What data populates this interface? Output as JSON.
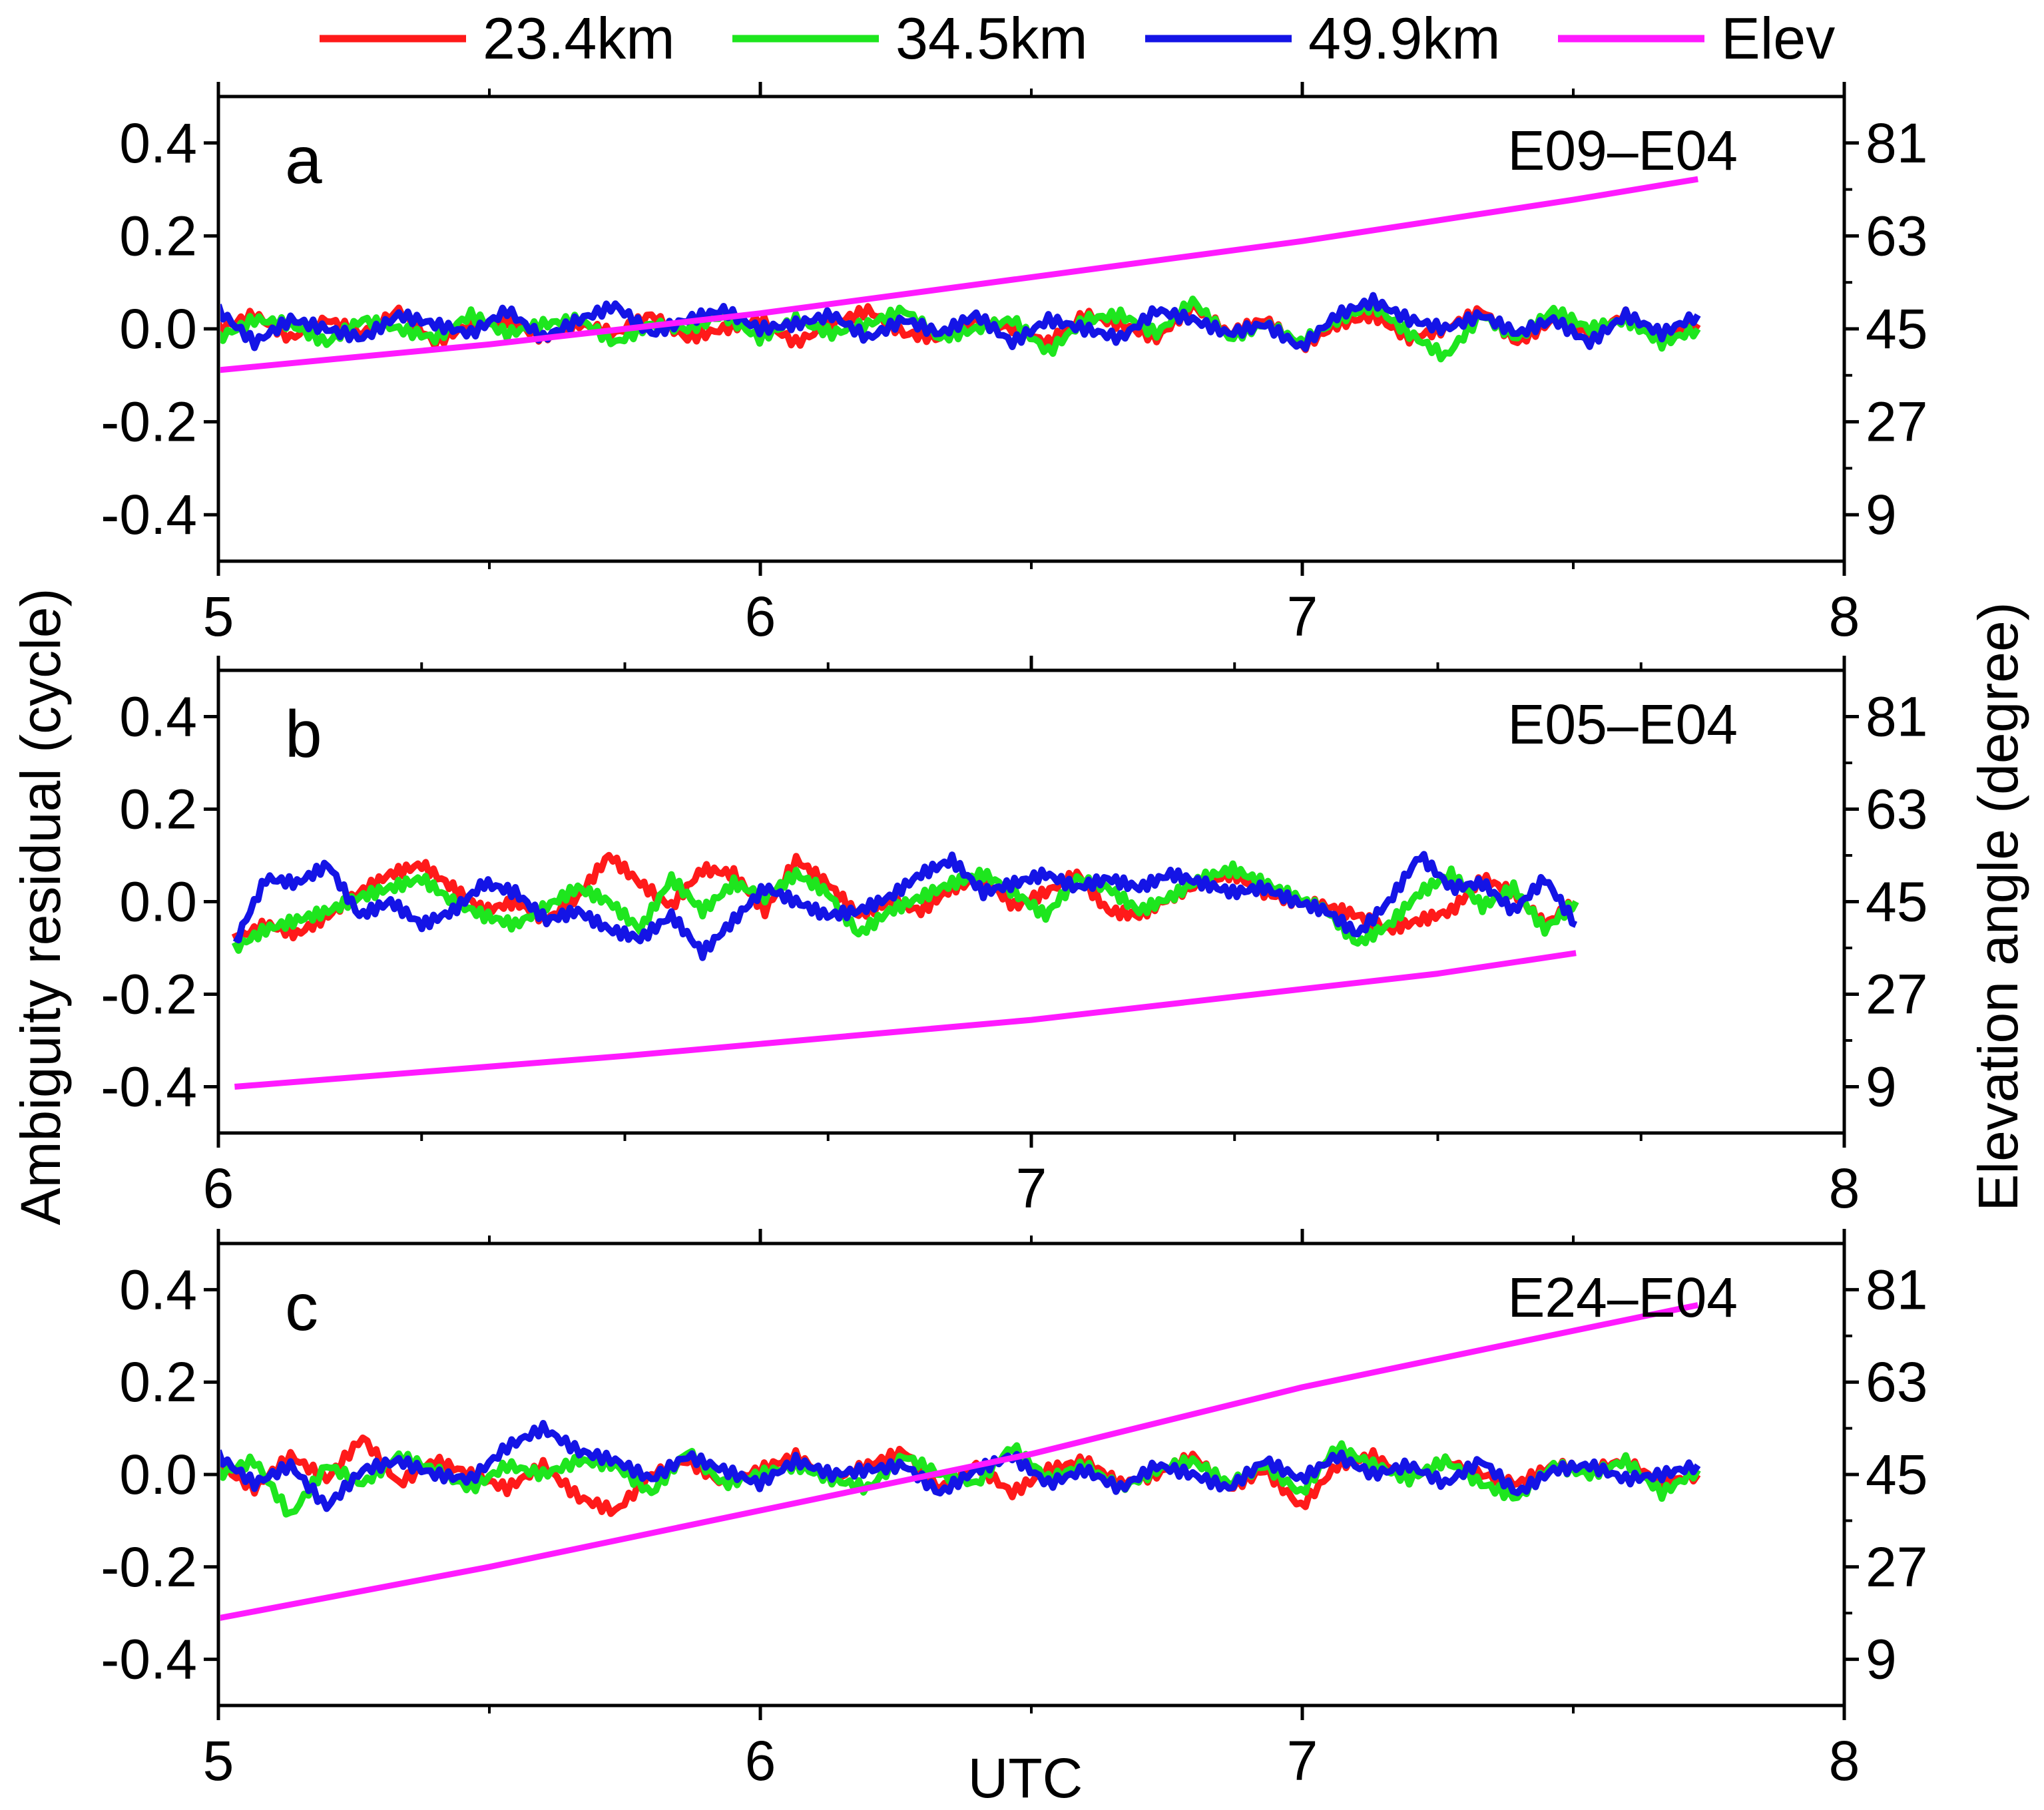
{
  "chart_data": {
    "type": "line",
    "shared_ylabel": "Ambiguity residual (cycle)",
    "shared_y2label": "Elevation angle (degree)",
    "shared_xlabel": "UTC",
    "legend": [
      {
        "name": "23.4km",
        "color": "#ff1a1a"
      },
      {
        "name": "34.5km",
        "color": "#1ee61e"
      },
      {
        "name": "49.9km",
        "color": "#1414e6"
      },
      {
        "name": "Elev",
        "color": "#ff1aff"
      }
    ],
    "panels": [
      {
        "letter": "a",
        "pair": "E09–E04",
        "xlim": [
          5,
          8
        ],
        "xticks": [
          "5",
          "6",
          "7",
          "8"
        ],
        "ylim": [
          -0.5,
          0.5
        ],
        "yticks": [
          "0.4",
          "0.2",
          "0.0",
          "-0.2",
          "-0.4"
        ],
        "y2lim": [
          0,
          90
        ],
        "y2ticks": [
          "81",
          "63",
          "45",
          "27",
          "9"
        ],
        "residual_x_range": [
          5.0,
          7.73
        ],
        "series": [
          {
            "name": "23.4km",
            "values": [
              0.0,
              0.03,
              -0.02,
              0.02,
              -0.01,
              0.04,
              -0.03,
              0.01,
              0.02,
              -0.02,
              0.01,
              -0.01,
              0.03,
              -0.02,
              0.0,
              0.02,
              -0.03,
              0.01,
              0.04,
              -0.01,
              -0.02,
              0.02,
              0.0,
              -0.03,
              0.03,
              0.01,
              -0.02,
              0.05,
              -0.01,
              0.02,
              -0.04,
              0.01,
              0.03,
              -0.02,
              0.0,
              0.04,
              -0.03,
              0.02,
              -0.01,
              0.03,
              -0.02,
              0.01
            ]
          },
          {
            "name": "34.5km",
            "values": [
              -0.02,
              0.02,
              0.01,
              -0.03,
              0.02,
              0.0,
              -0.02,
              0.03,
              -0.01,
              0.01,
              0.02,
              -0.03,
              0.01,
              0.0,
              0.03,
              -0.02,
              0.02,
              -0.01,
              0.01,
              0.04,
              -0.02,
              0.0,
              0.02,
              -0.05,
              0.02,
              0.03,
              -0.01,
              0.06,
              -0.02,
              0.01,
              -0.03,
              0.02,
              0.05,
              -0.01,
              -0.06,
              0.03,
              -0.02,
              0.04,
              0.0,
              0.02,
              -0.03,
              0.0
            ]
          },
          {
            "name": "49.9km",
            "values": [
              0.04,
              -0.03,
              0.02,
              0.0,
              -0.02,
              0.03,
              0.01,
              -0.01,
              0.04,
              -0.02,
              0.02,
              0.05,
              -0.01,
              0.02,
              0.04,
              0.0,
              0.01,
              0.03,
              -0.02,
              0.02,
              -0.01,
              0.03,
              -0.03,
              0.02,
              0.0,
              -0.02,
              0.04,
              0.02,
              -0.01,
              0.01,
              -0.04,
              0.03,
              0.06,
              0.02,
              0.0,
              0.03,
              -0.01,
              0.02,
              -0.03,
              0.03,
              -0.01,
              0.03
            ]
          }
        ],
        "elev": {
          "x": [
            5.0,
            5.5,
            6.0,
            6.5,
            7.0,
            7.5,
            7.73
          ],
          "values": [
            37,
            42,
            48,
            55,
            62,
            70,
            74
          ]
        }
      },
      {
        "letter": "b",
        "pair": "E05–E04",
        "xlim": [
          6,
          8
        ],
        "xticks": [
          "6",
          "7",
          "8"
        ],
        "ylim": [
          -0.5,
          0.5
        ],
        "yticks": [
          "0.4",
          "0.2",
          "0.0",
          "-0.2",
          "-0.4"
        ],
        "y2lim": [
          0,
          90
        ],
        "y2ticks": [
          "81",
          "63",
          "45",
          "27",
          "9"
        ],
        "residual_x_range": [
          6.02,
          7.67
        ],
        "series": [
          {
            "name": "23.4km",
            "values": [
              -0.08,
              -0.05,
              -0.07,
              -0.03,
              0.02,
              0.06,
              0.08,
              0.03,
              -0.02,
              0.0,
              -0.04,
              0.01,
              0.1,
              0.04,
              -0.01,
              0.07,
              0.06,
              -0.02,
              0.09,
              0.04,
              -0.03,
              0.0,
              -0.02,
              0.03,
              0.05,
              -0.01,
              0.02,
              0.06,
              -0.02,
              -0.03,
              0.01,
              0.04,
              0.06,
              0.02,
              0.0,
              -0.01,
              -0.03,
              -0.06,
              -0.04,
              -0.02,
              0.05,
              0.02,
              -0.05,
              0.0
            ]
          },
          {
            "name": "34.5km",
            "values": [
              -0.1,
              -0.06,
              -0.04,
              -0.02,
              0.01,
              0.03,
              0.05,
              0.0,
              -0.03,
              -0.05,
              -0.01,
              0.03,
              0.0,
              -0.06,
              0.05,
              -0.02,
              0.04,
              0.01,
              0.06,
              0.02,
              -0.07,
              -0.02,
              0.01,
              0.04,
              0.06,
              0.02,
              -0.03,
              0.05,
              0.03,
              -0.02,
              0.01,
              0.05,
              0.07,
              0.04,
              0.01,
              -0.02,
              -0.09,
              -0.05,
              0.02,
              0.06,
              -0.01,
              0.03,
              -0.06,
              0.0
            ]
          },
          {
            "name": "49.9km",
            "values": [
              -0.09,
              0.05,
              0.04,
              0.08,
              -0.03,
              0.0,
              -0.05,
              -0.02,
              0.04,
              0.02,
              -0.04,
              -0.02,
              -0.06,
              -0.08,
              -0.03,
              -0.11,
              -0.04,
              0.03,
              0.0,
              -0.03,
              -0.02,
              0.01,
              0.06,
              0.09,
              0.02,
              0.04,
              0.06,
              0.03,
              0.05,
              0.03,
              0.06,
              0.04,
              0.02,
              0.03,
              0.0,
              -0.02,
              -0.07,
              0.0,
              0.1,
              0.03,
              0.04,
              -0.02,
              0.05,
              -0.05
            ]
          }
        ],
        "elev": {
          "x": [
            6.02,
            6.5,
            7.0,
            7.5,
            7.67
          ],
          "values": [
            9,
            15,
            22,
            31,
            35
          ]
        }
      },
      {
        "letter": "c",
        "pair": "E24–E04",
        "xlim": [
          5,
          8
        ],
        "xticks": [
          "5",
          "6",
          "7",
          "8"
        ],
        "ylim": [
          -0.5,
          0.5
        ],
        "yticks": [
          "0.4",
          "0.2",
          "0.0",
          "-0.2",
          "-0.4"
        ],
        "y2lim": [
          0,
          90
        ],
        "y2ticks": [
          "81",
          "63",
          "45",
          "27",
          "9"
        ],
        "residual_x_range": [
          5.0,
          7.73
        ],
        "series": [
          {
            "name": "23.4km",
            "values": [
              0.02,
              -0.03,
              0.04,
              -0.01,
              0.08,
              -0.02,
              0.03,
              0.0,
              -0.03,
              0.02,
              -0.05,
              -0.08,
              0.0,
              0.03,
              -0.02,
              0.01,
              0.04,
              -0.01,
              0.02,
              0.05,
              -0.03,
              0.02,
              -0.04,
              0.01,
              0.03,
              -0.02,
              0.0,
              0.04,
              -0.03,
              0.01,
              -0.07,
              0.02,
              0.04,
              -0.01,
              0.03,
              0.0,
              -0.02,
              0.02,
              0.01,
              0.03,
              -0.02,
              0.0
            ]
          },
          {
            "name": "34.5km",
            "values": [
              0.0,
              0.03,
              -0.09,
              0.02,
              -0.02,
              0.04,
              0.01,
              -0.03,
              0.02,
              0.0,
              0.03,
              0.02,
              -0.04,
              0.05,
              -0.02,
              0.0,
              0.02,
              -0.01,
              -0.03,
              0.04,
              0.0,
              -0.02,
              0.06,
              -0.01,
              0.02,
              -0.03,
              0.01,
              0.03,
              -0.02,
              0.02,
              -0.04,
              0.06,
              0.02,
              -0.01,
              0.03,
              -0.02,
              -0.05,
              0.02,
              0.0,
              0.03,
              -0.04,
              0.01
            ]
          },
          {
            "name": "49.9km",
            "values": [
              0.04,
              -0.02,
              0.02,
              -0.07,
              0.01,
              0.03,
              0.0,
              -0.01,
              0.06,
              0.1,
              0.05,
              0.03,
              -0.01,
              0.04,
              0.01,
              -0.02,
              0.03,
              0.0,
              0.01,
              0.02,
              -0.04,
              0.01,
              0.04,
              -0.02,
              0.01,
              -0.03,
              0.02,
              0.0,
              -0.03,
              0.03,
              -0.01,
              0.04,
              0.0,
              0.02,
              -0.02,
              0.03,
              -0.04,
              0.01,
              0.02,
              -0.01,
              0.0,
              0.02
            ]
          }
        ],
        "elev": {
          "x": [
            5.0,
            5.5,
            6.0,
            6.5,
            7.0,
            7.5,
            7.73
          ],
          "values": [
            17,
            27,
            38,
            49,
            62,
            73,
            78
          ]
        }
      }
    ]
  }
}
